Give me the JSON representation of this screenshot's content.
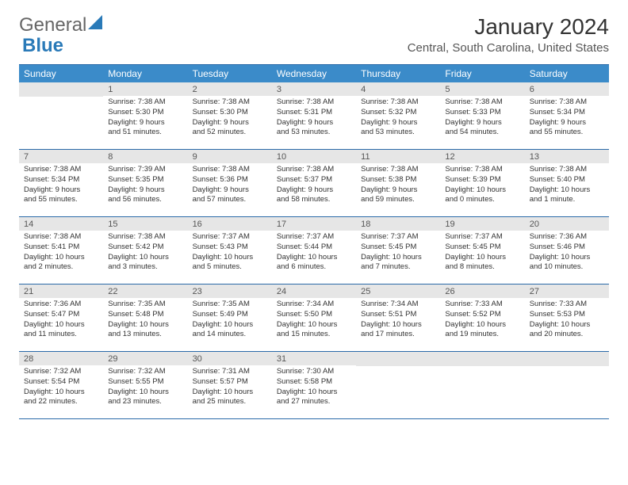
{
  "logo": {
    "part1": "General",
    "part2": "Blue"
  },
  "title": "January 2024",
  "location": "Central, South Carolina, United States",
  "colors": {
    "header_bg": "#3b8bc9",
    "header_text": "#ffffff",
    "daynum_bg": "#e6e6e6",
    "border": "#2a6aa8",
    "text": "#333333"
  },
  "day_names": [
    "Sunday",
    "Monday",
    "Tuesday",
    "Wednesday",
    "Thursday",
    "Friday",
    "Saturday"
  ],
  "weeks": [
    [
      {
        "n": "",
        "sr": "",
        "ss": "",
        "d1": "",
        "d2": ""
      },
      {
        "n": "1",
        "sr": "Sunrise: 7:38 AM",
        "ss": "Sunset: 5:30 PM",
        "d1": "Daylight: 9 hours",
        "d2": "and 51 minutes."
      },
      {
        "n": "2",
        "sr": "Sunrise: 7:38 AM",
        "ss": "Sunset: 5:30 PM",
        "d1": "Daylight: 9 hours",
        "d2": "and 52 minutes."
      },
      {
        "n": "3",
        "sr": "Sunrise: 7:38 AM",
        "ss": "Sunset: 5:31 PM",
        "d1": "Daylight: 9 hours",
        "d2": "and 53 minutes."
      },
      {
        "n": "4",
        "sr": "Sunrise: 7:38 AM",
        "ss": "Sunset: 5:32 PM",
        "d1": "Daylight: 9 hours",
        "d2": "and 53 minutes."
      },
      {
        "n": "5",
        "sr": "Sunrise: 7:38 AM",
        "ss": "Sunset: 5:33 PM",
        "d1": "Daylight: 9 hours",
        "d2": "and 54 minutes."
      },
      {
        "n": "6",
        "sr": "Sunrise: 7:38 AM",
        "ss": "Sunset: 5:34 PM",
        "d1": "Daylight: 9 hours",
        "d2": "and 55 minutes."
      }
    ],
    [
      {
        "n": "7",
        "sr": "Sunrise: 7:38 AM",
        "ss": "Sunset: 5:34 PM",
        "d1": "Daylight: 9 hours",
        "d2": "and 55 minutes."
      },
      {
        "n": "8",
        "sr": "Sunrise: 7:39 AM",
        "ss": "Sunset: 5:35 PM",
        "d1": "Daylight: 9 hours",
        "d2": "and 56 minutes."
      },
      {
        "n": "9",
        "sr": "Sunrise: 7:38 AM",
        "ss": "Sunset: 5:36 PM",
        "d1": "Daylight: 9 hours",
        "d2": "and 57 minutes."
      },
      {
        "n": "10",
        "sr": "Sunrise: 7:38 AM",
        "ss": "Sunset: 5:37 PM",
        "d1": "Daylight: 9 hours",
        "d2": "and 58 minutes."
      },
      {
        "n": "11",
        "sr": "Sunrise: 7:38 AM",
        "ss": "Sunset: 5:38 PM",
        "d1": "Daylight: 9 hours",
        "d2": "and 59 minutes."
      },
      {
        "n": "12",
        "sr": "Sunrise: 7:38 AM",
        "ss": "Sunset: 5:39 PM",
        "d1": "Daylight: 10 hours",
        "d2": "and 0 minutes."
      },
      {
        "n": "13",
        "sr": "Sunrise: 7:38 AM",
        "ss": "Sunset: 5:40 PM",
        "d1": "Daylight: 10 hours",
        "d2": "and 1 minute."
      }
    ],
    [
      {
        "n": "14",
        "sr": "Sunrise: 7:38 AM",
        "ss": "Sunset: 5:41 PM",
        "d1": "Daylight: 10 hours",
        "d2": "and 2 minutes."
      },
      {
        "n": "15",
        "sr": "Sunrise: 7:38 AM",
        "ss": "Sunset: 5:42 PM",
        "d1": "Daylight: 10 hours",
        "d2": "and 3 minutes."
      },
      {
        "n": "16",
        "sr": "Sunrise: 7:37 AM",
        "ss": "Sunset: 5:43 PM",
        "d1": "Daylight: 10 hours",
        "d2": "and 5 minutes."
      },
      {
        "n": "17",
        "sr": "Sunrise: 7:37 AM",
        "ss": "Sunset: 5:44 PM",
        "d1": "Daylight: 10 hours",
        "d2": "and 6 minutes."
      },
      {
        "n": "18",
        "sr": "Sunrise: 7:37 AM",
        "ss": "Sunset: 5:45 PM",
        "d1": "Daylight: 10 hours",
        "d2": "and 7 minutes."
      },
      {
        "n": "19",
        "sr": "Sunrise: 7:37 AM",
        "ss": "Sunset: 5:45 PM",
        "d1": "Daylight: 10 hours",
        "d2": "and 8 minutes."
      },
      {
        "n": "20",
        "sr": "Sunrise: 7:36 AM",
        "ss": "Sunset: 5:46 PM",
        "d1": "Daylight: 10 hours",
        "d2": "and 10 minutes."
      }
    ],
    [
      {
        "n": "21",
        "sr": "Sunrise: 7:36 AM",
        "ss": "Sunset: 5:47 PM",
        "d1": "Daylight: 10 hours",
        "d2": "and 11 minutes."
      },
      {
        "n": "22",
        "sr": "Sunrise: 7:35 AM",
        "ss": "Sunset: 5:48 PM",
        "d1": "Daylight: 10 hours",
        "d2": "and 13 minutes."
      },
      {
        "n": "23",
        "sr": "Sunrise: 7:35 AM",
        "ss": "Sunset: 5:49 PM",
        "d1": "Daylight: 10 hours",
        "d2": "and 14 minutes."
      },
      {
        "n": "24",
        "sr": "Sunrise: 7:34 AM",
        "ss": "Sunset: 5:50 PM",
        "d1": "Daylight: 10 hours",
        "d2": "and 15 minutes."
      },
      {
        "n": "25",
        "sr": "Sunrise: 7:34 AM",
        "ss": "Sunset: 5:51 PM",
        "d1": "Daylight: 10 hours",
        "d2": "and 17 minutes."
      },
      {
        "n": "26",
        "sr": "Sunrise: 7:33 AM",
        "ss": "Sunset: 5:52 PM",
        "d1": "Daylight: 10 hours",
        "d2": "and 19 minutes."
      },
      {
        "n": "27",
        "sr": "Sunrise: 7:33 AM",
        "ss": "Sunset: 5:53 PM",
        "d1": "Daylight: 10 hours",
        "d2": "and 20 minutes."
      }
    ],
    [
      {
        "n": "28",
        "sr": "Sunrise: 7:32 AM",
        "ss": "Sunset: 5:54 PM",
        "d1": "Daylight: 10 hours",
        "d2": "and 22 minutes."
      },
      {
        "n": "29",
        "sr": "Sunrise: 7:32 AM",
        "ss": "Sunset: 5:55 PM",
        "d1": "Daylight: 10 hours",
        "d2": "and 23 minutes."
      },
      {
        "n": "30",
        "sr": "Sunrise: 7:31 AM",
        "ss": "Sunset: 5:57 PM",
        "d1": "Daylight: 10 hours",
        "d2": "and 25 minutes."
      },
      {
        "n": "31",
        "sr": "Sunrise: 7:30 AM",
        "ss": "Sunset: 5:58 PM",
        "d1": "Daylight: 10 hours",
        "d2": "and 27 minutes."
      },
      {
        "n": "",
        "sr": "",
        "ss": "",
        "d1": "",
        "d2": ""
      },
      {
        "n": "",
        "sr": "",
        "ss": "",
        "d1": "",
        "d2": ""
      },
      {
        "n": "",
        "sr": "",
        "ss": "",
        "d1": "",
        "d2": ""
      }
    ]
  ]
}
